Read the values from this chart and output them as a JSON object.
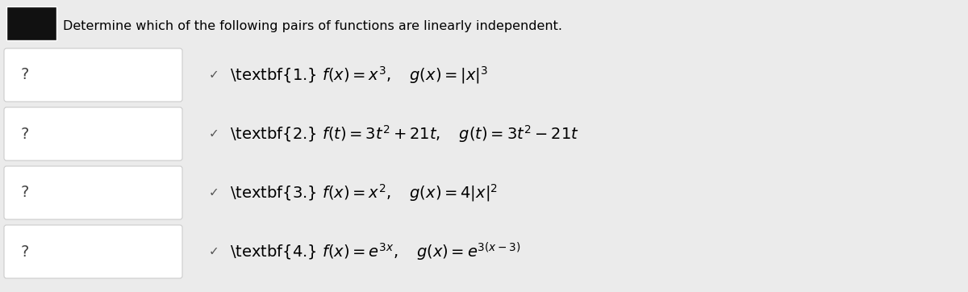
{
  "title": "Determine which of the following pairs of functions are linearly independent.",
  "title_fontsize": 11.5,
  "background_color": "#ebebeb",
  "box_color": "#ffffff",
  "box_edge_color": "#cccccc",
  "question_mark": "?",
  "checkmark": "✓",
  "rows": [
    {
      "label": "\\textbf{1.} $f(x) = x^3, \\quad g(x) = |x|^3$"
    },
    {
      "label": "\\textbf{2.} $f(t) = 3t^2 + 21t, \\quad g(t) = 3t^2 - 21t$"
    },
    {
      "label": "\\textbf{3.} $f(x) = x^2, \\quad g(x) = 4|x|^2$"
    },
    {
      "label": "\\textbf{4.} $f(x) = e^{3x}, \\quad g(x) = e^{3(x-3)}$"
    }
  ],
  "header_box_color": "#111111",
  "fig_width": 12.0,
  "fig_height": 3.62,
  "dpi": 100
}
